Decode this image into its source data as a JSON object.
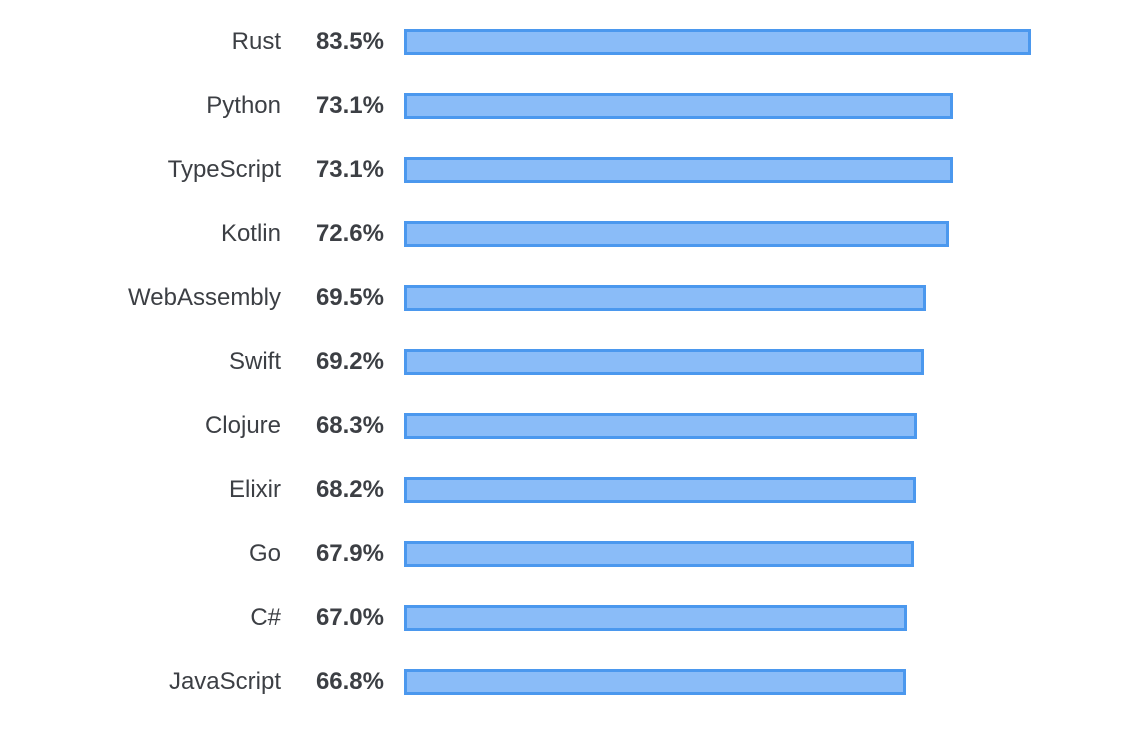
{
  "chart_data": {
    "type": "bar",
    "orientation": "horizontal",
    "title": "",
    "xlabel": "",
    "ylabel": "",
    "value_suffix": "%",
    "categories": [
      "Rust",
      "Python",
      "TypeScript",
      "Kotlin",
      "WebAssembly",
      "Swift",
      "Clojure",
      "Elixir",
      "Go",
      "C#",
      "JavaScript"
    ],
    "values": [
      83.5,
      73.1,
      73.1,
      72.6,
      69.5,
      69.2,
      68.3,
      68.2,
      67.9,
      67.0,
      66.8
    ],
    "labels": [
      "83.5%",
      "73.1%",
      "73.1%",
      "72.6%",
      "69.5%",
      "69.2%",
      "68.3%",
      "68.2%",
      "67.9%",
      "67.0%",
      "66.8%"
    ],
    "xlim": [
      0,
      83.5
    ],
    "grid": false,
    "legend": "none",
    "colors": {
      "bar_fill": "#8abcf8",
      "bar_stroke": "#4b98ee",
      "text": "#3c3f44"
    }
  }
}
